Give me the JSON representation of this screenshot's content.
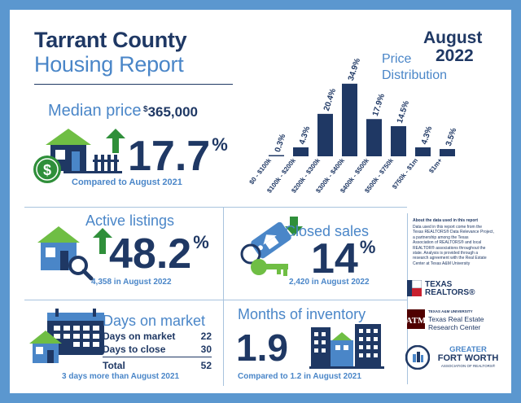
{
  "header": {
    "title_line1": "Tarrant County",
    "title_line2": "Housing Report",
    "month": "August",
    "year": "2022"
  },
  "price_distribution": {
    "title_line1": "Price",
    "title_line2": "Distribution"
  },
  "chart_data": {
    "type": "bar",
    "categories": [
      "$0 - $100k",
      "$100k - $200k",
      "$200k - $300k",
      "$300k - $400k",
      "$400k - $500k",
      "$500k - $750k",
      "$750k - $1m",
      "$1m+"
    ],
    "values": [
      0.3,
      4.3,
      20.4,
      34.9,
      17.9,
      14.5,
      4.3,
      3.5
    ],
    "value_labels": [
      "0.3%",
      "4.3%",
      "20.4%",
      "34.9%",
      "17.9%",
      "14.5%",
      "4.3%",
      "3.5%"
    ],
    "ylim": [
      0,
      36
    ],
    "grid": false,
    "bar_color": "#1f3864"
  },
  "median": {
    "label": "Median price",
    "price_symbol": "$",
    "price_value": "365,000",
    "change_value": "17.7",
    "change_unit": "%",
    "comparison": "Compared to August 2021"
  },
  "active": {
    "label": "Active listings",
    "change_value": "48.2",
    "change_unit": "%",
    "sub": "4,358 in August 2022"
  },
  "closed": {
    "label": "Closed sales",
    "change_value": "14",
    "change_unit": "%",
    "sub": "2,420 in August 2022"
  },
  "days": {
    "label": "Days on market",
    "rows": [
      {
        "name": "Days on market",
        "value": "22"
      },
      {
        "name": "Days to close",
        "value": "30"
      }
    ],
    "total_label": "Total",
    "total_value": "52",
    "sub": "3 days more than August 2021"
  },
  "inventory": {
    "label": "Months of inventory",
    "value": "1.9",
    "sub": "Compared to 1.2 in August 2021"
  },
  "about": {
    "heading": "About the data used in this report",
    "lines": [
      "Data used in this report come from the",
      "Texas REALTORS® Data Relevance Project,",
      "a partnership among the Texas",
      "Association of REALTORS® and local",
      "REALTOR® associations throughout the",
      "state. Analysis is provided through a",
      "research agreement with the Real Estate",
      "Center at Texas A&M University"
    ]
  },
  "logos": {
    "texas_realtors_line1": "TEXAS",
    "texas_realtors_line2": "REALTORS®",
    "tamu_small": "TEXAS A&M UNIVERSITY",
    "tamu_line1": "Texas Real Estate",
    "tamu_line2": "Research Center",
    "gfw_line1": "GREATER",
    "gfw_line2": "FORT WORTH",
    "gfw_line3": "ASSOCIATION OF REALTORS®"
  },
  "colors": {
    "navy": "#1f3864",
    "blue": "#4a86c8",
    "green": "#2f8f3a",
    "light_green": "#6fbe44",
    "frame": "#5b97cf"
  }
}
